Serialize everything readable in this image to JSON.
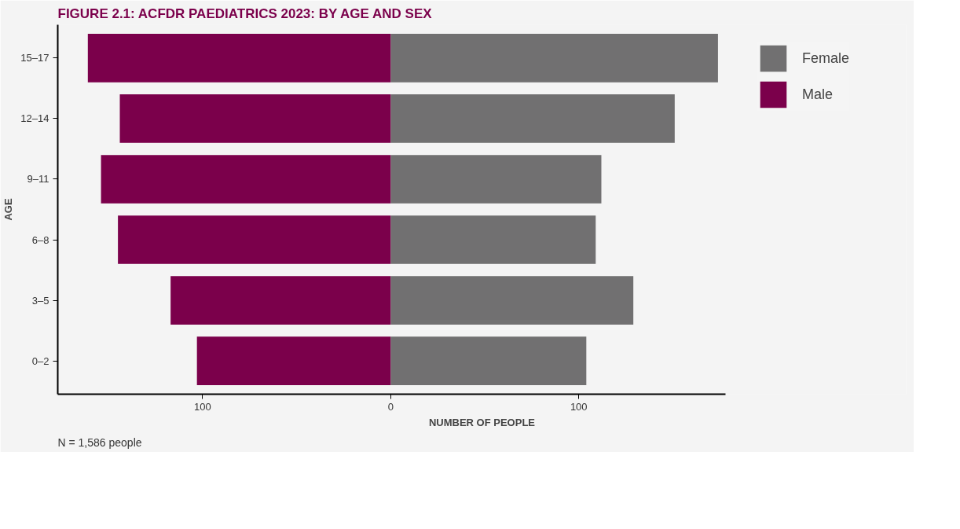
{
  "chart_data": {
    "type": "bar",
    "orientation": "horizontal",
    "title": "FIGURE 2.1: ACFDR PAEDIATRICS 2023: BY AGE AND SEX",
    "xlabel": "NUMBER OF PEOPLE",
    "ylabel": "AGE",
    "categories": [
      "15–17",
      "12–14",
      "9–11",
      "6–8",
      "3–5",
      "0–2"
    ],
    "series": [
      {
        "name": "Female",
        "color": "#717071",
        "values": [
          174,
          151,
          112,
          109,
          129,
          104
        ]
      },
      {
        "name": "Male",
        "color": "#7b004b",
        "values": [
          -161,
          -144,
          -154,
          -145,
          -117,
          -103
        ]
      }
    ],
    "xlim": [
      -177,
      178
    ],
    "xticks": [
      {
        "value": -100,
        "label": "100"
      },
      0,
      100
    ],
    "grid": false,
    "legend": "top right",
    "stacked": true,
    "annotations": [
      "N = 1,586 people"
    ]
  }
}
